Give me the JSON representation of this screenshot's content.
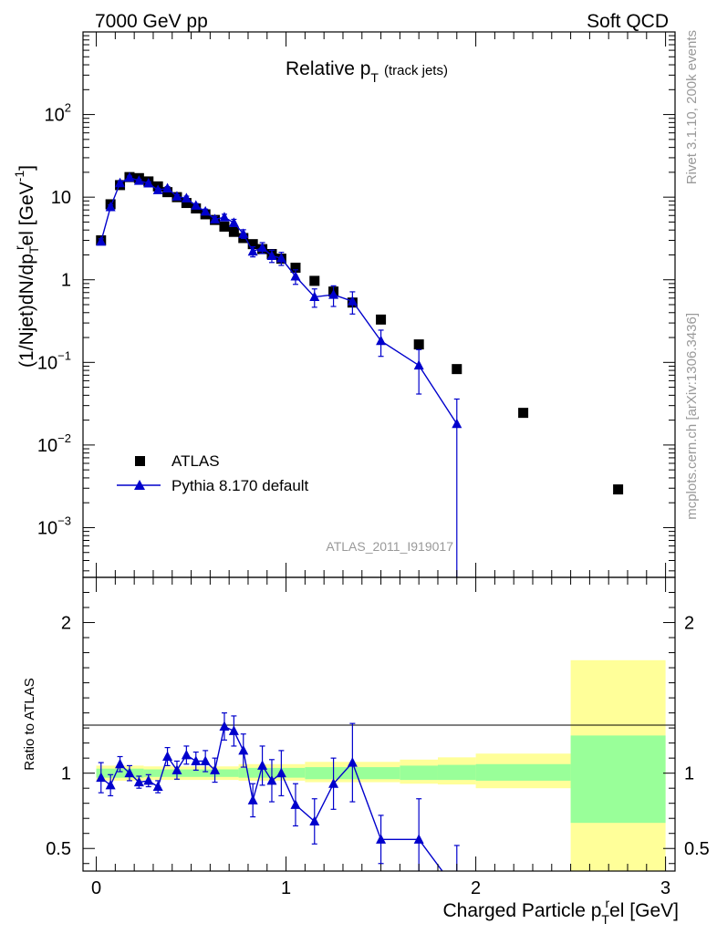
{
  "header": {
    "left": "7000 GeV pp",
    "right": "Soft QCD"
  },
  "side_labels": {
    "top": "Rivet 3.1.10,  200k events",
    "bottom": "mcplots.cern.ch [arXiv:1306.3436]"
  },
  "chart_data": {
    "type": "scatter",
    "title": "Relative p",
    "title_sub": "T",
    "title_suffix": "(track jets)",
    "analysis_id": "ATLAS_2011_I919017",
    "xlabel": "Charged Particle p",
    "xlabel_sub": "T",
    "xlabel_sup": "r",
    "xlabel_suffix": "el [GeV]",
    "xlim": [
      -0.07,
      3.05
    ],
    "x_ticks": [
      0,
      1,
      2,
      3
    ],
    "x_tick_labels": [
      "0",
      "1",
      "2",
      "3"
    ],
    "main_panel": {
      "ylabel": "(1/Njet)dN/dp",
      "ylabel_sub": "T",
      "ylabel_sup": "r",
      "ylabel_suffix": "el [GeV",
      "ylabel_unit_sup": "-1",
      "ylabel_end": "]",
      "yscale": "log",
      "ylim": [
        0.00025,
        1000
      ],
      "y_tick_labels": [
        {
          "value": 0.001,
          "base": "10",
          "exp": "−3"
        },
        {
          "value": 0.01,
          "base": "10",
          "exp": "−2"
        },
        {
          "value": 0.1,
          "base": "10",
          "exp": "−1"
        },
        {
          "value": 1,
          "base": "1",
          "exp": ""
        },
        {
          "value": 10,
          "base": "10",
          "exp": ""
        },
        {
          "value": 100,
          "base": "10",
          "exp": "2"
        }
      ],
      "legend_position": "bottom-left",
      "series": [
        {
          "name": "ATLAS",
          "marker": "square",
          "color": "#000000",
          "x": [
            0.025,
            0.075,
            0.125,
            0.175,
            0.225,
            0.275,
            0.325,
            0.375,
            0.425,
            0.475,
            0.525,
            0.575,
            0.625,
            0.675,
            0.725,
            0.775,
            0.825,
            0.875,
            0.925,
            0.975,
            1.05,
            1.15,
            1.25,
            1.35,
            1.5,
            1.7,
            1.9,
            2.25,
            2.75
          ],
          "y": [
            3.0,
            8.2,
            14.0,
            17.5,
            17.0,
            15.5,
            13.5,
            11.5,
            10.0,
            8.5,
            7.3,
            6.2,
            5.3,
            4.4,
            3.8,
            3.2,
            2.7,
            2.35,
            2.05,
            1.8,
            1.4,
            0.97,
            0.72,
            0.53,
            0.33,
            0.165,
            0.083,
            0.0245,
            0.0029
          ]
        },
        {
          "name": "Pythia 8.170 default",
          "marker": "triangle",
          "color": "#0000cc",
          "x": [
            0.025,
            0.075,
            0.125,
            0.175,
            0.225,
            0.275,
            0.325,
            0.375,
            0.425,
            0.475,
            0.525,
            0.575,
            0.625,
            0.675,
            0.725,
            0.775,
            0.825,
            0.875,
            0.925,
            0.975,
            1.05,
            1.15,
            1.25,
            1.35,
            1.5,
            1.7,
            1.9
          ],
          "y": [
            2.9,
            7.6,
            14.8,
            17.3,
            15.8,
            14.7,
            12.2,
            12.8,
            10.2,
            9.7,
            7.9,
            6.7,
            5.4,
            5.7,
            4.9,
            3.6,
            2.2,
            2.45,
            1.95,
            1.82,
            1.1,
            0.62,
            0.66,
            0.55,
            0.182,
            0.092,
            0.018
          ],
          "yerr_rel": [
            0.08,
            0.06,
            0.05,
            0.04,
            0.04,
            0.04,
            0.05,
            0.05,
            0.05,
            0.06,
            0.06,
            0.07,
            0.08,
            0.09,
            0.1,
            0.12,
            0.14,
            0.15,
            0.17,
            0.18,
            0.2,
            0.25,
            0.28,
            0.3,
            0.35,
            0.55,
            1.0
          ]
        }
      ]
    },
    "ratio_panel": {
      "ylabel": "Ratio to ATLAS",
      "ylim": [
        0.35,
        2.3
      ],
      "y_ticks": [
        0.5,
        1,
        2
      ],
      "y_tick_labels": [
        "0.5",
        "1",
        "2"
      ],
      "reference_line": 1,
      "bands": [
        {
          "x0": 0.0,
          "x1": 0.25,
          "green": [
            0.97,
            1.03
          ],
          "yellow": [
            0.95,
            1.05
          ]
        },
        {
          "x0": 0.25,
          "x1": 0.75,
          "green": [
            0.975,
            1.025
          ],
          "yellow": [
            0.955,
            1.045
          ]
        },
        {
          "x0": 0.75,
          "x1": 1.1,
          "green": [
            0.97,
            1.035
          ],
          "yellow": [
            0.95,
            1.06
          ]
        },
        {
          "x0": 1.1,
          "x1": 1.6,
          "green": [
            0.96,
            1.04
          ],
          "yellow": [
            0.94,
            1.075
          ]
        },
        {
          "x0": 1.6,
          "x1": 1.8,
          "green": [
            0.955,
            1.05
          ],
          "yellow": [
            0.93,
            1.09
          ]
        },
        {
          "x0": 1.8,
          "x1": 2.0,
          "green": [
            0.955,
            1.055
          ],
          "yellow": [
            0.925,
            1.105
          ]
        },
        {
          "x0": 2.0,
          "x1": 2.5,
          "green": [
            0.95,
            1.06
          ],
          "yellow": [
            0.9,
            1.13
          ]
        },
        {
          "x0": 2.5,
          "x1": 3.0,
          "green": [
            0.67,
            1.25
          ],
          "yellow": [
            0.35,
            1.75
          ]
        }
      ],
      "series": [
        {
          "name": "Pythia 8.170 default",
          "color": "#0000cc",
          "x": [
            0.025,
            0.075,
            0.125,
            0.175,
            0.225,
            0.275,
            0.325,
            0.375,
            0.425,
            0.475,
            0.525,
            0.575,
            0.625,
            0.675,
            0.725,
            0.775,
            0.825,
            0.875,
            0.925,
            0.975,
            1.05,
            1.15,
            1.25,
            1.35,
            1.5,
            1.7,
            1.9
          ],
          "y": [
            0.97,
            0.92,
            1.06,
            1.0,
            0.94,
            0.95,
            0.91,
            1.11,
            1.02,
            1.12,
            1.08,
            1.08,
            1.02,
            1.31,
            1.28,
            1.15,
            0.82,
            1.05,
            0.95,
            1.0,
            0.79,
            0.68,
            0.93,
            1.07,
            0.56,
            0.56,
            0.22
          ],
          "yerr": [
            0.1,
            0.07,
            0.05,
            0.05,
            0.04,
            0.04,
            0.04,
            0.06,
            0.06,
            0.06,
            0.06,
            0.07,
            0.08,
            0.09,
            0.1,
            0.11,
            0.11,
            0.13,
            0.14,
            0.15,
            0.14,
            0.15,
            0.17,
            0.26,
            0.16,
            0.27,
            0.3
          ]
        }
      ]
    }
  }
}
